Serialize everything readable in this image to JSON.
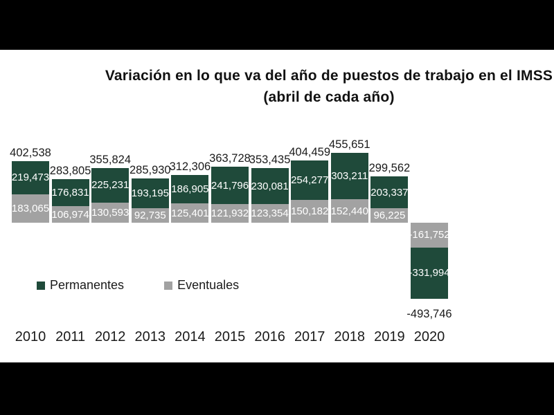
{
  "window": {
    "letterbox_color": "#000000",
    "canvas_color": "#ffffff"
  },
  "title": {
    "line1": "Variación en lo que va del año de puestos de trabajo en el IMSS",
    "line2": "(abril de cada año)"
  },
  "legend": {
    "items": [
      {
        "label": "Permanentes",
        "color": "#1f4a3a"
      },
      {
        "label": "Eventuales",
        "color": "#a2a2a2"
      }
    ]
  },
  "chart_data": {
    "type": "bar",
    "stacked": true,
    "title": "Variación en lo que va del año de puestos de trabajo en el IMSS (abril de cada año)",
    "categories": [
      "2010",
      "2011",
      "2012",
      "2013",
      "2014",
      "2015",
      "2016",
      "2017",
      "2018",
      "2019",
      "2020"
    ],
    "series": [
      {
        "name": "Permanentes",
        "color": "#1f4a3a",
        "values": [
          219473,
          176831,
          225231,
          193195,
          186905,
          241796,
          230081,
          254277,
          303211,
          203337,
          -331994
        ]
      },
      {
        "name": "Eventuales",
        "color": "#a2a2a2",
        "values": [
          183065,
          106974,
          130593,
          92735,
          125401,
          121932,
          123354,
          150182,
          152440,
          96225,
          -161752
        ]
      }
    ],
    "totals": [
      402538,
      283805,
      355824,
      285930,
      312306,
      363728,
      353435,
      404459,
      455651,
      299562,
      -493746
    ],
    "value_labels": true,
    "value_label_color": "#ffffff",
    "total_label_color": "#1a1a1a",
    "axis": {
      "x_labels_visible": true,
      "y_axis_visible": false,
      "gridlines": false
    },
    "legend_position": "bottom-left"
  }
}
